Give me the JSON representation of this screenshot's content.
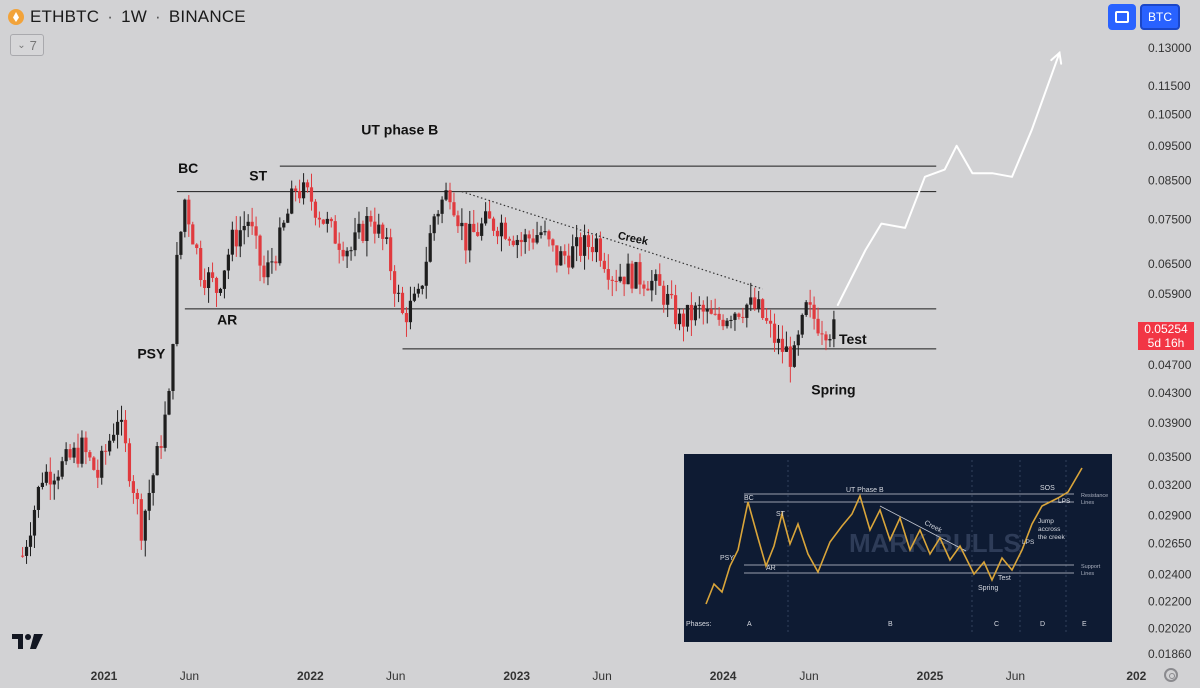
{
  "header": {
    "symbol": "ETHBTC",
    "interval": "1W",
    "exchange": "BINANCE",
    "indicator_count": "7",
    "currency": "BTC"
  },
  "last_price": {
    "value": "0.05254",
    "countdown": "5d 16h"
  },
  "colors": {
    "background": "#d2d2d4",
    "up": "#1e1e1e",
    "down": "#e03a3e",
    "price_tag": "#f23645",
    "accent": "#2962ff",
    "projection": "#ffffff"
  },
  "icons": [
    "eth-coin-icon",
    "chevron-down-icon",
    "fullscreen-icon",
    "tradingview-logo-icon",
    "settings-icon"
  ],
  "chart_data": {
    "type": "candlestick",
    "y_scale": "log",
    "ylim": [
      0.0186,
      0.138
    ],
    "y_ticks": [
      "0.13000",
      "0.11500",
      "0.10500",
      "0.09500",
      "0.08500",
      "0.07500",
      "0.06500",
      "0.05900",
      "0.05254",
      "0.04700",
      "0.04300",
      "0.03900",
      "0.03500",
      "0.03200",
      "0.02900",
      "0.02650",
      "0.02400",
      "0.02200",
      "0.02020",
      "0.01860"
    ],
    "x_ticks": [
      {
        "label": "2021",
        "date": "2021-01-01",
        "bold": true
      },
      {
        "label": "Jun",
        "date": "2021-06-01",
        "bold": false
      },
      {
        "label": "2022",
        "date": "2022-01-01",
        "bold": true
      },
      {
        "label": "Jun",
        "date": "2022-06-01",
        "bold": false
      },
      {
        "label": "2023",
        "date": "2023-01-01",
        "bold": true
      },
      {
        "label": "Jun",
        "date": "2023-06-01",
        "bold": false
      },
      {
        "label": "2024",
        "date": "2024-01-01",
        "bold": true
      },
      {
        "label": "Jun",
        "date": "2024-06-01",
        "bold": false
      },
      {
        "label": "2025",
        "date": "2025-01-01",
        "bold": true
      },
      {
        "label": "Jun",
        "date": "2025-06-01",
        "bold": false
      },
      {
        "label": "202",
        "date": "2026-01-01",
        "bold": true
      }
    ],
    "price_path": [
      [
        "2020-08-10",
        0.0255
      ],
      [
        "2020-09-14",
        0.033
      ],
      [
        "2020-10-19",
        0.034
      ],
      [
        "2020-11-23",
        0.036
      ],
      [
        "2020-12-21",
        0.033
      ],
      [
        "2021-01-25",
        0.04
      ],
      [
        "2021-02-22",
        0.032
      ],
      [
        "2021-03-08",
        0.028
      ],
      [
        "2021-04-05",
        0.035
      ],
      [
        "2021-04-26",
        0.042
      ],
      [
        "2021-05-10",
        0.065
      ],
      [
        "2021-05-24",
        0.08
      ],
      [
        "2021-06-21",
        0.064
      ],
      [
        "2021-07-19",
        0.06
      ],
      [
        "2021-08-16",
        0.07
      ],
      [
        "2021-09-13",
        0.075
      ],
      [
        "2021-10-11",
        0.062
      ],
      [
        "2021-11-08",
        0.07
      ],
      [
        "2021-12-06",
        0.083
      ],
      [
        "2022-01-03",
        0.08
      ],
      [
        "2022-02-07",
        0.072
      ],
      [
        "2022-03-14",
        0.068
      ],
      [
        "2022-04-18",
        0.076
      ],
      [
        "2022-05-16",
        0.068
      ],
      [
        "2022-06-13",
        0.055
      ],
      [
        "2022-07-11",
        0.058
      ],
      [
        "2022-08-08",
        0.076
      ],
      [
        "2022-09-05",
        0.083
      ],
      [
        "2022-10-03",
        0.07
      ],
      [
        "2022-11-07",
        0.074
      ],
      [
        "2022-12-05",
        0.074
      ],
      [
        "2023-01-09",
        0.07
      ],
      [
        "2023-02-13",
        0.072
      ],
      [
        "2023-03-13",
        0.066
      ],
      [
        "2023-04-17",
        0.068
      ],
      [
        "2023-05-22",
        0.07
      ],
      [
        "2023-06-19",
        0.063
      ],
      [
        "2023-07-17",
        0.063
      ],
      [
        "2023-08-21",
        0.062
      ],
      [
        "2023-09-18",
        0.059
      ],
      [
        "2023-10-16",
        0.054
      ],
      [
        "2023-11-20",
        0.056
      ],
      [
        "2023-12-18",
        0.054
      ],
      [
        "2024-01-15",
        0.056
      ],
      [
        "2024-02-12",
        0.057
      ],
      [
        "2024-03-04",
        0.056
      ],
      [
        "2024-04-08",
        0.05
      ],
      [
        "2024-05-06",
        0.048
      ],
      [
        "2024-05-27",
        0.056
      ],
      [
        "2024-06-17",
        0.054
      ],
      [
        "2024-07-15",
        0.05254
      ]
    ],
    "key_levels": [
      {
        "price": 0.089,
        "from": "2021-11-08",
        "to": "2025-01-12"
      },
      {
        "price": 0.082,
        "from": "2021-05-10",
        "to": "2025-01-12"
      },
      {
        "price": 0.0563,
        "from": "2021-05-24",
        "to": "2025-01-12"
      },
      {
        "price": 0.0495,
        "from": "2022-06-13",
        "to": "2025-01-12"
      }
    ],
    "creek_line": {
      "from": [
        "2022-09-26",
        0.082
      ],
      "to": [
        "2024-03-11",
        0.06
      ]
    },
    "projection_path": [
      [
        "2024-07-22",
        0.057
      ],
      [
        "2024-09-09",
        0.068
      ],
      [
        "2024-10-07",
        0.074
      ],
      [
        "2024-11-18",
        0.073
      ],
      [
        "2024-12-23",
        0.086
      ],
      [
        "2025-01-27",
        0.088
      ],
      [
        "2025-02-17",
        0.095
      ],
      [
        "2025-03-17",
        0.087
      ],
      [
        "2025-04-21",
        0.087
      ],
      [
        "2025-05-26",
        0.086
      ],
      [
        "2025-06-30",
        0.1
      ],
      [
        "2025-08-18",
        0.128
      ]
    ],
    "annotations": [
      {
        "text": "PSY",
        "date": "2021-03-01",
        "price": 0.048
      },
      {
        "text": "BC",
        "date": "2021-05-12",
        "price": 0.087
      },
      {
        "text": "ST",
        "date": "2021-09-15",
        "price": 0.085
      },
      {
        "text": "UT phase B",
        "date": "2022-04-01",
        "price": 0.0985
      },
      {
        "text": "AR",
        "date": "2021-07-20",
        "price": 0.0535
      },
      {
        "text": "Creek",
        "date": "2023-06-28",
        "price": 0.0705,
        "rotation": 12
      },
      {
        "text": "Test",
        "date": "2024-07-24",
        "price": 0.0503
      },
      {
        "text": "Spring",
        "date": "2024-06-05",
        "price": 0.0428
      }
    ]
  },
  "inset": {
    "watermark": "MARK BULLS",
    "labels": {
      "bc": "BC",
      "ut": "UT Phase B",
      "st": "ST",
      "psy": "PSY",
      "ar": "AR",
      "creek": "Creek",
      "sos": "SOS",
      "lps_top": "LPS",
      "lps_mid": "LPS",
      "jump": [
        "Jump",
        "accross",
        "the creek"
      ],
      "resistance": [
        "Resistance",
        "Lines"
      ],
      "support": [
        "Support",
        "Lines"
      ],
      "spring": "Spring",
      "test": "Test"
    },
    "phases_label": "Phases:",
    "phases": [
      "A",
      "B",
      "C",
      "D",
      "E"
    ]
  }
}
